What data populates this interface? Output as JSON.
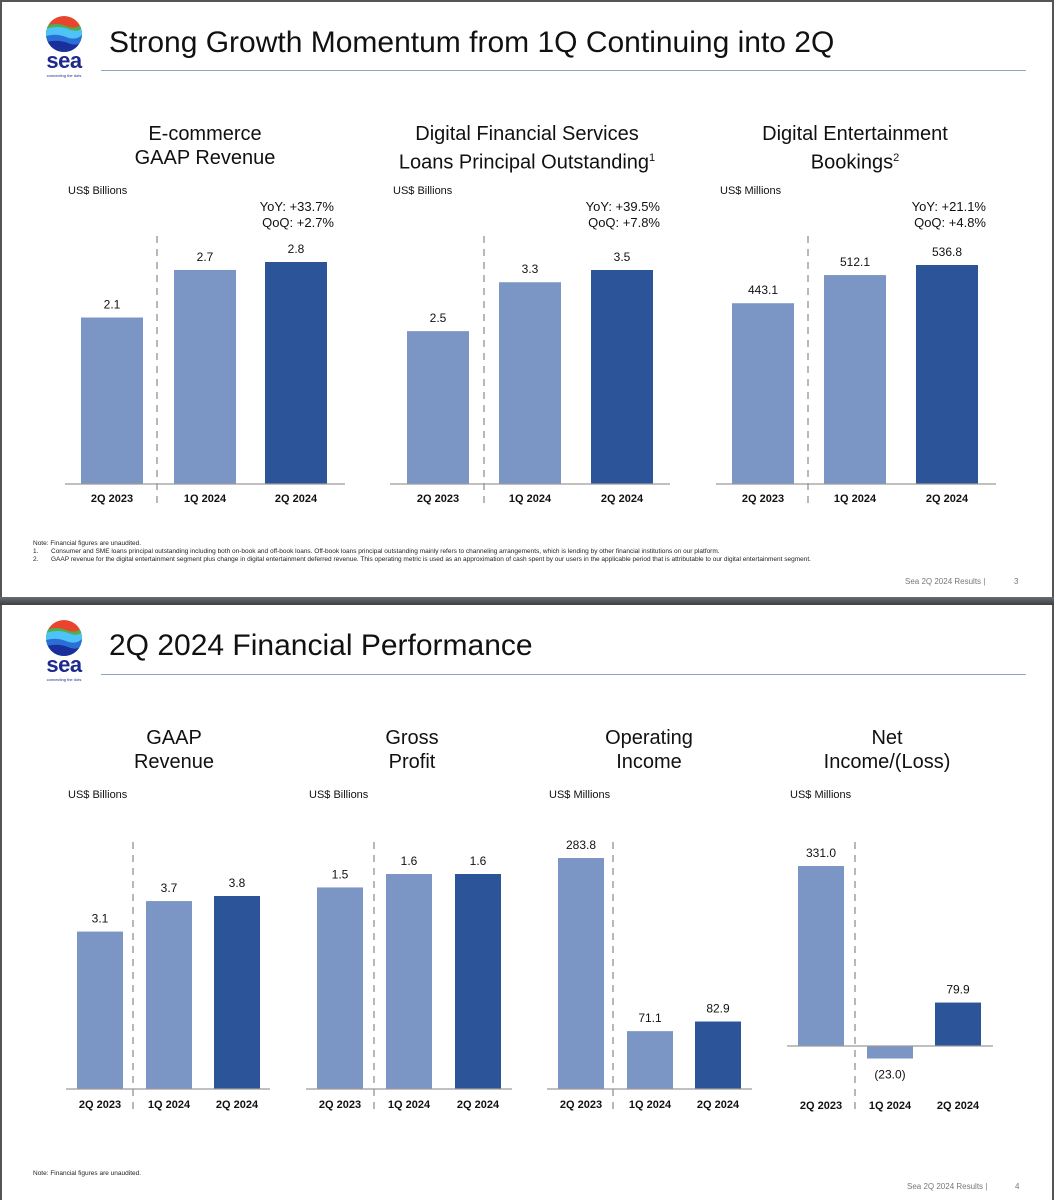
{
  "colors": {
    "bar_light": "#7b96c4",
    "bar_dark": "#2c5499",
    "divider": "#b8b8b8",
    "axis": "#9a9a9a",
    "title_rule": "#8fa3c8",
    "logo_text": "#1d2a8c"
  },
  "logo": {
    "word": "sea",
    "tagline": "connecting the dots"
  },
  "slide1": {
    "title": "Strong Growth Momentum from 1Q Continuing into 2Q",
    "note_header": "Note: Financial figures are unaudited.",
    "footnotes": [
      {
        "num": "1.",
        "text": "Consumer and SME loans principal outstanding including both on-book and off-book loans. Off-book loans principal outstanding mainly refers to channeling arrangements, which is lending by other financial institutions on our platform."
      },
      {
        "num": "2.",
        "text": "GAAP revenue for the digital entertainment segment plus change in digital entertainment deferred revenue. This operating metric is used as an approximation of cash spent by our users in the applicable period that is attributable to our digital entertainment segment."
      }
    ],
    "footer": {
      "label": "Sea 2Q 2024 Results |",
      "page": "3"
    }
  },
  "slide2": {
    "title": "2Q 2024 Financial Performance",
    "note_header": "Note: Financial figures are unaudited.",
    "footer": {
      "label": "Sea 2Q 2024 Results |",
      "page": "4"
    }
  },
  "chart_data": [
    {
      "type": "bar",
      "id": "ecommerce",
      "title": [
        "E-commerce",
        "GAAP Revenue"
      ],
      "title_sup": "",
      "ylabel": "US$ Billions",
      "categories": [
        "2Q 2023",
        "1Q 2024",
        "2Q 2024"
      ],
      "values": [
        2.1,
        2.7,
        2.8
      ],
      "labels": [
        "2.1",
        "2.7",
        "2.8"
      ],
      "growth": [
        "YoY: +33.7%",
        "QoQ: +2.7%"
      ],
      "ylim": [
        0,
        2.8
      ]
    },
    {
      "type": "bar",
      "id": "dfs",
      "title": [
        "Digital Financial Services",
        "Loans Principal Outstanding"
      ],
      "title_sup": "1",
      "ylabel": "US$ Billions",
      "categories": [
        "2Q 2023",
        "1Q 2024",
        "2Q 2024"
      ],
      "values": [
        2.5,
        3.3,
        3.5
      ],
      "labels": [
        "2.5",
        "3.3",
        "3.5"
      ],
      "growth": [
        "YoY: +39.5%",
        "QoQ: +7.8%"
      ],
      "ylim": [
        0,
        3.5
      ]
    },
    {
      "type": "bar",
      "id": "entertainment",
      "title": [
        "Digital Entertainment",
        "Bookings"
      ],
      "title_sup": "2",
      "ylabel": "US$ Millions",
      "categories": [
        "2Q 2023",
        "1Q 2024",
        "2Q 2024"
      ],
      "values": [
        443.1,
        512.1,
        536.8
      ],
      "labels": [
        "443.1",
        "512.1",
        "536.8"
      ],
      "growth": [
        "YoY: +21.1%",
        "QoQ: +4.8%"
      ],
      "ylim": [
        0,
        536.8
      ]
    },
    {
      "type": "bar",
      "id": "gaap_revenue",
      "title": [
        "GAAP",
        "Revenue"
      ],
      "title_sup": "",
      "ylabel": "US$ Billions",
      "categories": [
        "2Q 2023",
        "1Q 2024",
        "2Q 2024"
      ],
      "values": [
        3.1,
        3.7,
        3.8
      ],
      "labels": [
        "3.1",
        "3.7",
        "3.8"
      ],
      "ylim": [
        0,
        3.8
      ]
    },
    {
      "type": "bar",
      "id": "gross_profit",
      "title": [
        "Gross",
        "Profit"
      ],
      "title_sup": "",
      "ylabel": "US$ Billions",
      "categories": [
        "2Q 2023",
        "1Q 2024",
        "2Q 2024"
      ],
      "values": [
        1.5,
        1.6,
        1.6
      ],
      "labels": [
        "1.5",
        "1.6",
        "1.6"
      ],
      "ylim": [
        0,
        1.6
      ]
    },
    {
      "type": "bar",
      "id": "operating_income",
      "title": [
        "Operating",
        "Income"
      ],
      "title_sup": "",
      "ylabel": "US$ Millions",
      "categories": [
        "2Q 2023",
        "1Q 2024",
        "2Q 2024"
      ],
      "values": [
        283.8,
        71.1,
        82.9
      ],
      "labels": [
        "283.8",
        "71.1",
        "82.9"
      ],
      "ylim": [
        0,
        283.8
      ]
    },
    {
      "type": "bar",
      "id": "net_income",
      "title": [
        "Net",
        "Income/(Loss)"
      ],
      "title_sup": "",
      "ylabel": "US$ Millions",
      "categories": [
        "2Q 2023",
        "1Q 2024",
        "2Q 2024"
      ],
      "values": [
        331.0,
        -23.0,
        79.9
      ],
      "labels": [
        "331.0",
        "(23.0)",
        "79.9"
      ],
      "ylim": [
        -23.0,
        331.0
      ]
    }
  ]
}
